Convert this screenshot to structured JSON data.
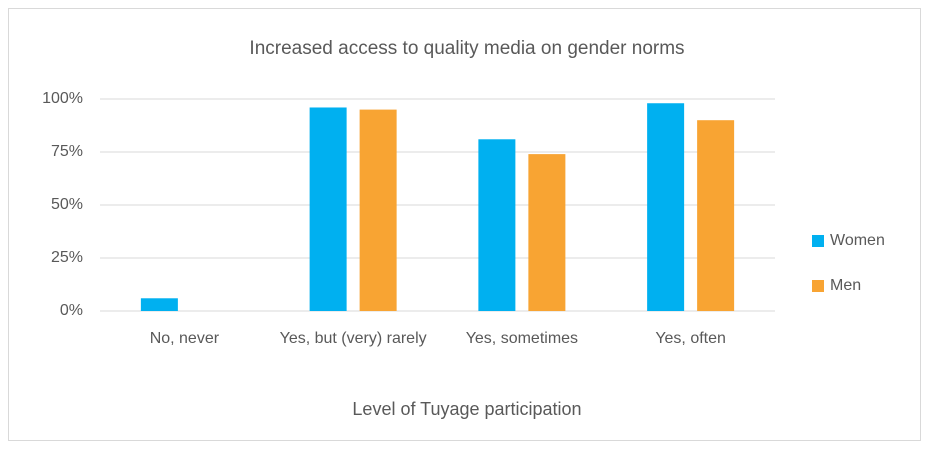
{
  "chart_data": {
    "type": "bar",
    "title": "Increased access to quality media on gender norms",
    "x_label": "Level of Tuyage participation",
    "categories": [
      "No, never",
      "Yes, but (very) rarely",
      "Yes, sometimes",
      "Yes, often"
    ],
    "series": [
      {
        "name": "Women",
        "color": "#00b0f0",
        "values": [
          6,
          96,
          81,
          98
        ]
      },
      {
        "name": "Men",
        "color": "#f8a433",
        "values": [
          0,
          95,
          74,
          90
        ]
      }
    ],
    "ylim": [
      0,
      100
    ],
    "yticks": [
      {
        "value": 0,
        "label": "0%"
      },
      {
        "value": 25,
        "label": "25%"
      },
      {
        "value": 50,
        "label": "50%"
      },
      {
        "value": 75,
        "label": "75%"
      },
      {
        "value": 100,
        "label": "100%"
      }
    ],
    "grid": true,
    "legend": "right"
  }
}
